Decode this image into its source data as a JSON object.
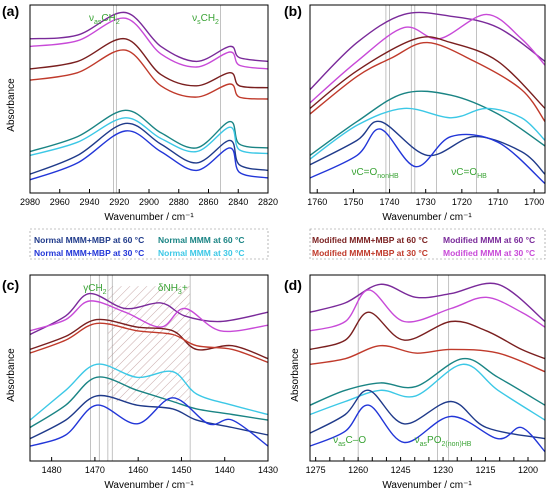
{
  "colors": {
    "normal_60": "#1f3a8a",
    "normal_30": "#2236d8",
    "normal_mmm_60": "#1a8484",
    "normal_mmm_30": "#3cc8e6",
    "mod_mmmmbp_60": "#7a1f1f",
    "mod_mmmmbp_30": "#c03a2b",
    "mod_mmm_60": "#7a2a9a",
    "mod_mmm_30": "#c84ad8",
    "annotation": "#3aa335"
  },
  "legend": {
    "normal_mmmmbp_60": "Normal MMM+MBP at 60 °C",
    "normal_mmm_60": "Normal MMM at 60 °C",
    "normal_mmmmbp_30": "Normal MMM+MBP at 30 °C",
    "normal_mmm_30": "Normal MMM at 30 °C",
    "mod_mmmmbp_60": "Modified MMM+MBP at 60 °C",
    "mod_mmm_60": "Modified MMM at 60 °C",
    "mod_mmmmbp_30": "Modified MMM+MBP at 30 °C",
    "mod_mmm_30": "Modified MMM at 30 °C"
  },
  "chart_data": [
    {
      "panel": "(a)",
      "type": "line",
      "xlabel": "Wavenumber / cm⁻¹",
      "ylabel": "Absorbance",
      "xlim": [
        2980,
        2820
      ],
      "xticks": [
        "2980",
        "2960",
        "2940",
        "2920",
        "2900",
        "2880",
        "2860",
        "2840",
        "2820"
      ],
      "bands": [
        2924,
        2922,
        2852
      ],
      "annotations": [
        {
          "main": "ν",
          "sub": "as",
          "rest": "CH",
          "rsub": "2",
          "x": 2930
        },
        {
          "main": "ν",
          "sub": "s",
          "rest": "CH",
          "rsub": "2",
          "x": 2862
        }
      ]
    },
    {
      "panel": "(b)",
      "type": "line",
      "xlabel": "Wavenumber / cm⁻¹",
      "ylabel": "",
      "xlim": [
        1762,
        1697
      ],
      "xticks": [
        "1760",
        "1750",
        "1740",
        "1730",
        "1720",
        "1710",
        "1700"
      ],
      "bands": [
        1741,
        1740,
        1734,
        1733,
        1727,
        1716
      ],
      "annotations": [
        {
          "main": "νC=O",
          "sub": "nonHB",
          "rest": "",
          "rsub": "",
          "x": 1744
        },
        {
          "main": "νC=O",
          "sub": "HB",
          "rest": "",
          "rsub": "",
          "x": 1718
        }
      ]
    },
    {
      "panel": "(c)",
      "type": "line",
      "xlabel": "Wavenumber / cm⁻¹",
      "ylabel": "Absorbance",
      "xlim": [
        1485,
        1430
      ],
      "xticks": [
        "1480",
        "1470",
        "1460",
        "1450",
        "1440",
        "1430"
      ],
      "bands": [
        1471,
        1469,
        1467,
        1466,
        1448
      ],
      "hatch": [
        1467,
        1448
      ],
      "annotations": [
        {
          "main": "γCH",
          "sub": "2",
          "rest": "",
          "rsub": "",
          "x": 1470
        },
        {
          "main": "δNH",
          "sub": "3",
          "rest": "+",
          "rsub": "",
          "x": 1452
        }
      ]
    },
    {
      "panel": "(d)",
      "type": "line",
      "xlabel": "Wavenumber / cm⁻¹",
      "ylabel": "Absorbance",
      "xlim": [
        1277,
        1194
      ],
      "xticks": [
        "1275",
        "1270",
        "1265",
        "1260",
        "1255",
        "1250",
        "1245",
        "1240",
        "1235",
        "1230",
        "1225",
        "1220",
        "1215",
        "1210",
        "1205",
        "1200"
      ],
      "xtick_values": [
        1275,
        1270,
        1265,
        1260,
        1255,
        1250,
        1245,
        1240,
        1235,
        1230,
        1225,
        1220,
        1215,
        1210,
        1205,
        1200
      ],
      "xtick_labels_shown": [
        "1275",
        "1260",
        "1245",
        "1230",
        "1215",
        "1200"
      ],
      "bands": [
        1260,
        1232,
        1228
      ],
      "annotations": [
        {
          "main": "ν",
          "sub": "as",
          "rest": "C–O",
          "rsub": "",
          "x": 1263
        },
        {
          "main": "ν",
          "sub": "as",
          "rest": "PO",
          "rsub": "2",
          "extra": "(non)HB",
          "x": 1230
        }
      ]
    }
  ]
}
